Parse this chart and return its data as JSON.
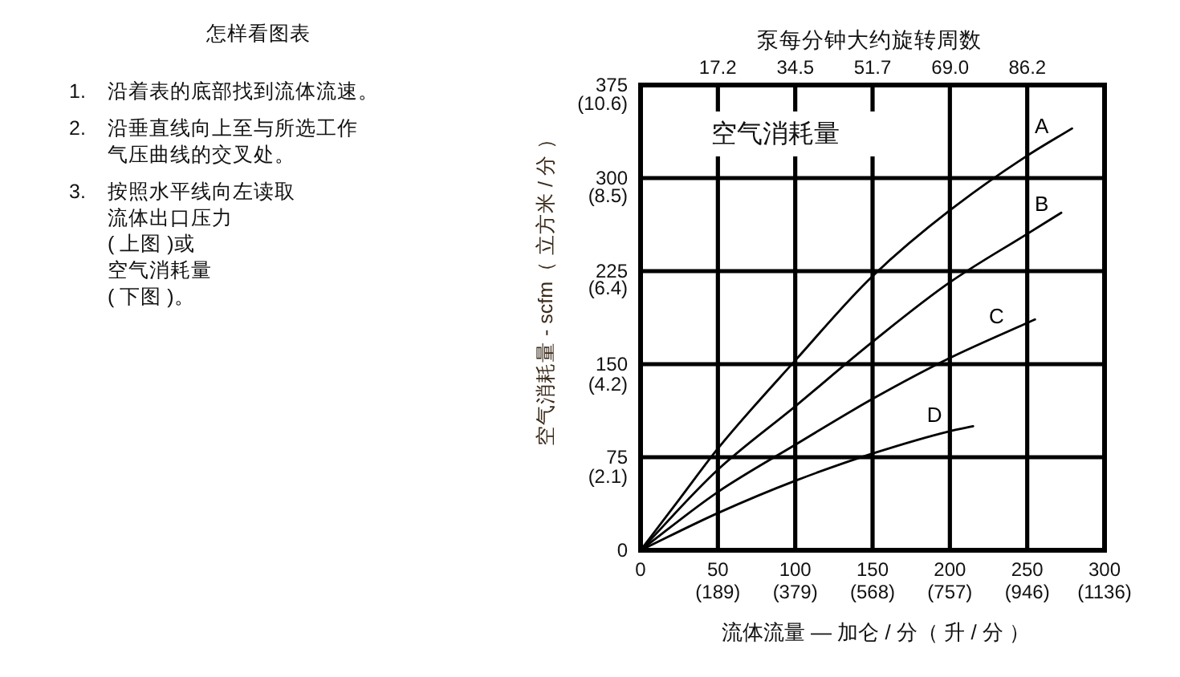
{
  "chart_data": {
    "type": "line",
    "title": "空气消耗量",
    "xlabel": "流体流量 — 加仑 / 分（ 升 / 分 ）",
    "y2label": "空气消耗量 - scfm（ 立方米 / 分 ）",
    "x2label": "泵每分钟大约旋转周数",
    "annotations": [
      "怎样看图表",
      "1.",
      "沿着表的底部找到流体流速。",
      "2.",
      "沿垂直线向上至与所选工作气压曲线的交叉处。",
      "3.",
      "按照水平线向左读取",
      "流体出口压力",
      "( 上图 )或",
      "空气消耗量",
      "( 下图 )。",
      "(189)",
      "(379)",
      "(568)",
      "(757)",
      "(946)",
      "(1136)"
    ],
    "series": [
      {
        "name": "A",
        "color": "#000000",
        "x": [
          0,
          25,
          50,
          100,
          150,
          200,
          250,
          279
        ],
        "values": [
          0,
          41,
          82,
          153,
          221,
          274,
          318,
          340
        ]
      },
      {
        "name": "B",
        "color": "#000000",
        "x": [
          0,
          50,
          100,
          150,
          200,
          250,
          272
        ],
        "values": [
          0,
          65,
          116,
          168,
          216,
          255,
          272
        ]
      },
      {
        "name": "C",
        "color": "#000000",
        "x": [
          0,
          50,
          100,
          150,
          200,
          255
        ],
        "values": [
          0,
          47,
          85,
          122,
          155,
          186
        ]
      },
      {
        "name": "D",
        "color": "#000000",
        "x": [
          0,
          50,
          100,
          150,
          200,
          215
        ],
        "values": [
          0,
          30,
          56,
          78,
          96,
          100
        ]
      }
    ],
    "xlim": [
      0,
      300
    ],
    "ylim": [
      0,
      375
    ],
    "xticks": [
      0,
      50,
      100,
      150,
      200,
      250,
      300
    ],
    "yticks": [
      0,
      75,
      150,
      225,
      300,
      375
    ],
    "y2lim": [
      0,
      10.6
    ],
    "y2ticks": [
      {
        "value": 2.1,
        "label": "(2.1)"
      },
      {
        "value": 4.2,
        "label": "(4.2)"
      },
      {
        "value": 6.4,
        "label": "(6.4)"
      },
      {
        "value": 8.5,
        "label": "(8.5)"
      },
      {
        "value": 10.6,
        "label": "(10.6)"
      }
    ],
    "x2lim": [
      0,
      103.4
    ],
    "x2ticks": [
      17.2,
      34.5,
      51.7,
      {
        "value": 69,
        "label": "69.0"
      },
      86.2
    ],
    "grid": true,
    "line_style": "solid"
  }
}
